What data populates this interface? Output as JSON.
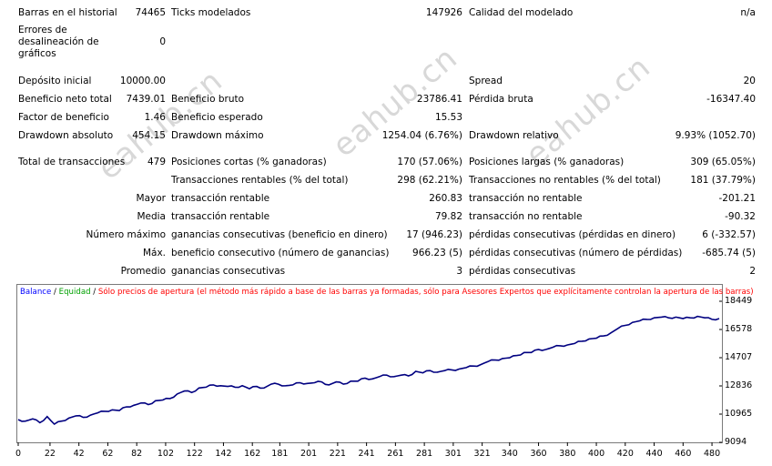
{
  "report": {
    "bars_label": "Barras en el historial",
    "bars_value": "74465",
    "ticks_label": "Ticks modelados",
    "ticks_value": "147926",
    "quality_label": "Calidad del modelado",
    "quality_value": "n/a",
    "errors_label": [
      "Errores de",
      "desalineación de",
      "gráficos"
    ],
    "errors_value": "0",
    "deposit_label": "Depósito inicial",
    "deposit_value": "10000.00",
    "spread_label": "Spread",
    "spread_value": "20",
    "net_profit_label": "Beneficio neto total",
    "net_profit_value": "7439.01",
    "gross_profit_label": "Beneficio bruto",
    "gross_profit_value": "23786.41",
    "gross_loss_label": "Pérdida bruta",
    "gross_loss_value": "-16347.40",
    "profit_factor_label": "Factor de beneficio",
    "profit_factor_value": "1.46",
    "expected_payoff_label": "Beneficio esperado",
    "expected_payoff_value": "15.53",
    "abs_drawdown_label": "Drawdown absoluto",
    "abs_drawdown_value": "454.15",
    "max_drawdown_label": "Drawdown máximo",
    "max_drawdown_value": "1254.04 (6.76%)",
    "rel_drawdown_label": "Drawdown relativo",
    "rel_drawdown_value": "9.93% (1052.70)",
    "total_trades_label": "Total de transacciones",
    "total_trades_value": "479",
    "short_label": "Posiciones cortas (% ganadoras)",
    "short_value": "170 (57.06%)",
    "long_label": "Posiciones largas (% ganadoras)",
    "long_value": "309 (65.05%)",
    "profit_trades_label": "Transacciones rentables (% del total)",
    "profit_trades_value": "298 (62.21%)",
    "loss_trades_label": "Transacciones no rentables (% del total)",
    "loss_trades_value": "181 (37.79%)",
    "largest_label": "Mayor",
    "largest_profit_label": "transacción rentable",
    "largest_profit_value": "260.83",
    "largest_loss_label": "transacción no rentable",
    "largest_loss_value": "-201.21",
    "average_label": "Media",
    "average_profit_label": "transacción rentable",
    "average_profit_value": "79.82",
    "average_loss_label": "transacción no rentable",
    "average_loss_value": "-90.32",
    "max_num_label": "Número máximo",
    "max_consec_wins_label": "ganancias consecutivas (beneficio en dinero)",
    "max_consec_wins_value": "17 (946.23)",
    "max_consec_losses_label": "pérdidas consecutivas (pérdidas en dinero)",
    "max_consec_losses_value": "6 (-332.57)",
    "max_label": "Máx.",
    "max_consec_profit_label": "beneficio consecutivo (número de ganancias)",
    "max_consec_profit_value": "966.23 (5)",
    "max_consec_loss_label": "pérdidas consecutivas (número de pérdidas)",
    "max_consec_loss_value": "-685.74 (5)",
    "avg_label": "Promedio",
    "avg_consec_wins_label": "ganancias consecutivas",
    "avg_consec_wins_value": "3",
    "avg_consec_losses_label": "pérdidas consecutivas",
    "avg_consec_losses_value": "2"
  },
  "legend": {
    "balance": "Balance",
    "sep1": " / ",
    "equity": "Equidad",
    "sep2": " / ",
    "note": "Sólo precios de apertura (el método más rápido a base de las barras ya formadas, sólo para Asesores Expertos que explícitamente controlan la apertura de las barras)"
  },
  "watermark": "eahub.cn",
  "colors": {
    "balance": "#0000ff",
    "equity": "#00a000",
    "note": "#ff0000",
    "line": "#000080"
  },
  "chart_data": {
    "type": "line",
    "title": "",
    "x_ticks": [
      "0",
      "22",
      "42",
      "62",
      "82",
      "102",
      "122",
      "142",
      "162",
      "181",
      "201",
      "221",
      "241",
      "261",
      "281",
      "301",
      "321",
      "340",
      "360",
      "380",
      "400",
      "420",
      "440",
      "460",
      "480"
    ],
    "y_ticks": [
      "18449",
      "16578",
      "14707",
      "12836",
      "10965",
      "9094"
    ],
    "ylim": [
      9094,
      18449
    ],
    "xlim": [
      0,
      485
    ],
    "series": [
      {
        "name": "Balance",
        "x": [
          0,
          5,
          10,
          15,
          20,
          25,
          30,
          35,
          40,
          45,
          50,
          55,
          60,
          65,
          70,
          75,
          80,
          85,
          90,
          95,
          100,
          105,
          110,
          115,
          120,
          125,
          130,
          135,
          140,
          145,
          150,
          155,
          160,
          165,
          170,
          175,
          180,
          185,
          190,
          195,
          200,
          205,
          210,
          215,
          220,
          225,
          230,
          235,
          240,
          245,
          250,
          255,
          260,
          265,
          270,
          275,
          280,
          285,
          290,
          295,
          300,
          305,
          310,
          315,
          320,
          325,
          330,
          335,
          340,
          345,
          350,
          355,
          360,
          365,
          370,
          375,
          380,
          385,
          390,
          395,
          400,
          405,
          410,
          415,
          420,
          425,
          430,
          435,
          440,
          445,
          450,
          455,
          460,
          465,
          470,
          475,
          480,
          485
        ],
        "y": [
          10600,
          10500,
          10650,
          10400,
          10800,
          10300,
          10500,
          10700,
          10850,
          10750,
          10900,
          11050,
          11150,
          11250,
          11200,
          11450,
          11550,
          11700,
          11600,
          11850,
          11900,
          12000,
          12300,
          12500,
          12400,
          12700,
          12750,
          12900,
          12850,
          12800,
          12750,
          12850,
          12650,
          12800,
          12700,
          12950,
          12950,
          12850,
          12900,
          13050,
          13000,
          13050,
          13100,
          12900,
          13100,
          12950,
          13150,
          13150,
          13350,
          13300,
          13450,
          13550,
          13450,
          13550,
          13500,
          13800,
          13700,
          13850,
          13750,
          13850,
          13900,
          13950,
          14050,
          14150,
          14250,
          14450,
          14550,
          14650,
          14700,
          14850,
          15050,
          15050,
          15250,
          15250,
          15400,
          15500,
          15550,
          15650,
          15800,
          15950,
          16000,
          16150,
          16350,
          16650,
          16850,
          17050,
          17150,
          17250,
          17350,
          17400,
          17350,
          17400,
          17300,
          17350,
          17450,
          17350,
          17250,
          17300
        ]
      }
    ]
  }
}
